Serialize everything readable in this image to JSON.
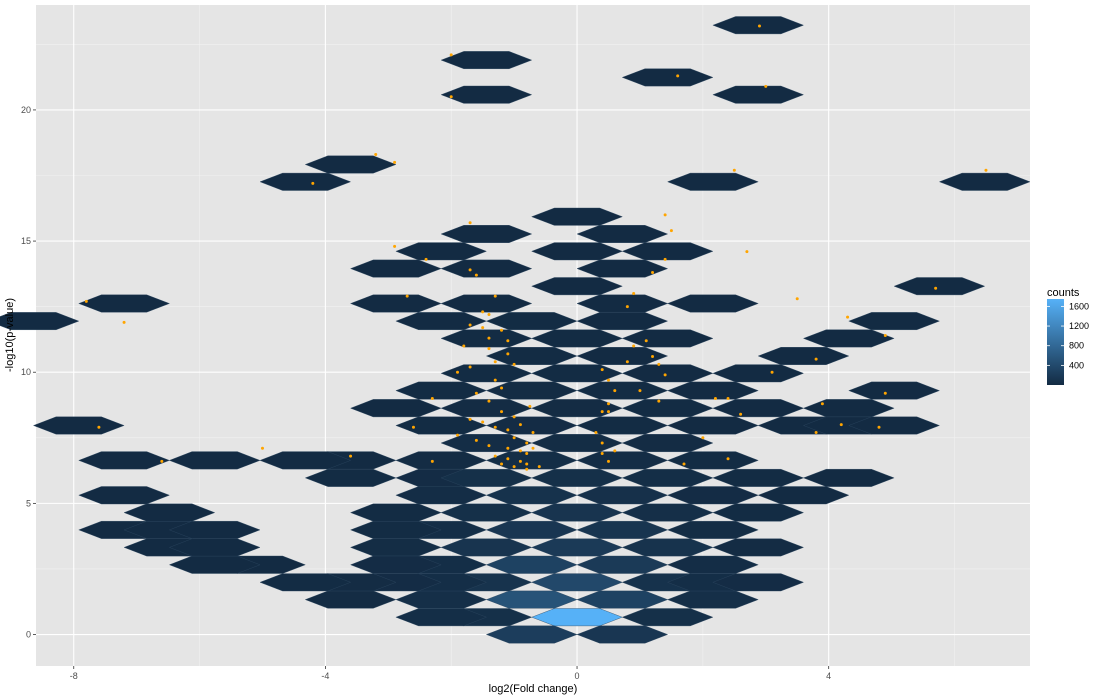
{
  "chart_data": {
    "type": "hexbin",
    "xlabel": "log2(Fold change)",
    "ylabel": "-log10(p-value)",
    "xlim": [
      -8.6,
      7.2
    ],
    "ylim": [
      -1.2,
      24.0
    ],
    "x_ticks": [
      -8,
      -4,
      0,
      4
    ],
    "y_ticks": [
      0,
      5,
      10,
      15,
      20
    ],
    "grid": true,
    "legend": {
      "title": "counts",
      "position": "right",
      "ticks": [
        400,
        800,
        1200,
        1600
      ],
      "range": [
        1,
        1750
      ]
    },
    "colors": {
      "low": "#132b43",
      "high": "#56b1f7",
      "points": "#ffa500",
      "panel": "#e5e5e5",
      "grid": "#ffffff"
    },
    "hex": {
      "dx": 0.72,
      "dy": 0.664
    },
    "bins": [
      [
        0,
        0.66,
        1750
      ],
      [
        -0.72,
        0.0,
        240
      ],
      [
        0.72,
        0.0,
        150
      ],
      [
        -0.72,
        1.33,
        520
      ],
      [
        0.72,
        1.33,
        300
      ],
      [
        -0.72,
        2.66,
        300
      ],
      [
        0.72,
        2.66,
        200
      ],
      [
        0.0,
        1.99,
        380
      ],
      [
        0.0,
        3.32,
        200
      ],
      [
        -1.44,
        0.66,
        60
      ],
      [
        1.44,
        0.66,
        60
      ],
      [
        -2.16,
        0.66,
        40
      ],
      [
        -1.44,
        1.99,
        100
      ],
      [
        1.44,
        1.99,
        90
      ],
      [
        -2.16,
        1.33,
        50
      ],
      [
        2.16,
        1.33,
        50
      ],
      [
        -2.16,
        1.99,
        40
      ],
      [
        2.16,
        1.99,
        40
      ],
      [
        2.88,
        1.99,
        20
      ],
      [
        -2.88,
        1.99,
        20
      ],
      [
        -3.6,
        1.33,
        15
      ],
      [
        -3.6,
        1.99,
        15
      ],
      [
        -4.32,
        1.99,
        10
      ],
      [
        -5.04,
        2.66,
        5
      ],
      [
        -5.76,
        2.66,
        5
      ],
      [
        -6.48,
        3.32,
        5
      ],
      [
        -7.2,
        3.99,
        5
      ],
      [
        -6.48,
        3.99,
        5
      ],
      [
        -5.76,
        3.32,
        5
      ],
      [
        -5.76,
        3.99,
        5
      ],
      [
        -6.48,
        4.65,
        5
      ],
      [
        -7.2,
        5.31,
        5
      ],
      [
        -2.88,
        3.32,
        25
      ],
      [
        -1.44,
        3.32,
        120
      ],
      [
        1.44,
        3.32,
        100
      ],
      [
        2.88,
        3.32,
        15
      ],
      [
        -2.16,
        2.66,
        40
      ],
      [
        2.16,
        2.66,
        30
      ],
      [
        -2.88,
        2.66,
        20
      ],
      [
        -2.16,
        3.99,
        40
      ],
      [
        -0.72,
        3.99,
        150
      ],
      [
        0.72,
        3.99,
        130
      ],
      [
        2.16,
        3.99,
        25
      ],
      [
        -2.88,
        3.99,
        10
      ],
      [
        -1.44,
        4.65,
        60
      ],
      [
        0.0,
        4.65,
        120
      ],
      [
        1.44,
        4.65,
        50
      ],
      [
        2.88,
        4.65,
        10
      ],
      [
        -2.88,
        4.65,
        10
      ],
      [
        -2.16,
        5.31,
        30
      ],
      [
        -0.72,
        5.31,
        90
      ],
      [
        0.72,
        5.31,
        70
      ],
      [
        2.16,
        5.31,
        20
      ],
      [
        3.6,
        5.31,
        5
      ],
      [
        -3.6,
        5.97,
        10
      ],
      [
        -2.16,
        5.97,
        20
      ],
      [
        -1.44,
        5.97,
        60
      ],
      [
        0.0,
        5.97,
        60
      ],
      [
        1.44,
        5.97,
        40
      ],
      [
        2.88,
        5.97,
        10
      ],
      [
        4.32,
        5.97,
        5
      ],
      [
        -3.6,
        6.64,
        5
      ],
      [
        -2.16,
        6.64,
        15
      ],
      [
        -0.72,
        6.64,
        40
      ],
      [
        0.72,
        6.64,
        30
      ],
      [
        2.16,
        6.64,
        10
      ],
      [
        -4.32,
        6.64,
        5
      ],
      [
        -5.76,
        6.64,
        5
      ],
      [
        -7.2,
        6.64,
        5
      ],
      [
        -1.44,
        7.3,
        30
      ],
      [
        0.0,
        7.3,
        25
      ],
      [
        1.44,
        7.3,
        15
      ],
      [
        -2.16,
        7.97,
        10
      ],
      [
        -0.72,
        7.97,
        20
      ],
      [
        0.72,
        7.97,
        10
      ],
      [
        2.16,
        7.97,
        5
      ],
      [
        3.6,
        7.97,
        5
      ],
      [
        4.32,
        7.97,
        5
      ],
      [
        5.04,
        7.97,
        5
      ],
      [
        -7.92,
        7.97,
        5
      ],
      [
        -2.88,
        8.63,
        5
      ],
      [
        -1.44,
        8.63,
        15
      ],
      [
        0.0,
        8.63,
        15
      ],
      [
        1.44,
        8.63,
        10
      ],
      [
        2.88,
        8.63,
        5
      ],
      [
        4.32,
        8.63,
        5
      ],
      [
        -2.16,
        9.3,
        10
      ],
      [
        -0.72,
        9.3,
        15
      ],
      [
        0.72,
        9.3,
        10
      ],
      [
        2.16,
        9.3,
        5
      ],
      [
        5.04,
        9.3,
        5
      ],
      [
        -1.44,
        9.96,
        10
      ],
      [
        0.0,
        9.96,
        10
      ],
      [
        1.44,
        9.96,
        5
      ],
      [
        2.88,
        9.96,
        5
      ],
      [
        -0.72,
        10.62,
        10
      ],
      [
        0.72,
        10.62,
        5
      ],
      [
        3.6,
        10.62,
        5
      ],
      [
        -1.44,
        11.29,
        10
      ],
      [
        0.0,
        11.29,
        10
      ],
      [
        1.44,
        11.29,
        5
      ],
      [
        4.32,
        11.29,
        5
      ],
      [
        -0.72,
        11.95,
        10
      ],
      [
        0.72,
        11.95,
        5
      ],
      [
        -2.16,
        11.95,
        5
      ],
      [
        5.04,
        11.95,
        5
      ],
      [
        -8.64,
        11.95,
        5
      ],
      [
        -1.44,
        12.62,
        5
      ],
      [
        0.72,
        12.62,
        5
      ],
      [
        -2.88,
        12.62,
        5
      ],
      [
        -7.2,
        12.62,
        5
      ],
      [
        2.16,
        12.62,
        5
      ],
      [
        0.0,
        13.28,
        5
      ],
      [
        5.76,
        13.28,
        5
      ],
      [
        -1.44,
        13.95,
        5
      ],
      [
        -2.88,
        13.95,
        5
      ],
      [
        0.72,
        13.95,
        5
      ],
      [
        -2.16,
        14.61,
        5
      ],
      [
        0.0,
        14.61,
        5
      ],
      [
        1.44,
        14.61,
        5
      ],
      [
        -1.44,
        15.27,
        5
      ],
      [
        0.72,
        15.27,
        5
      ],
      [
        0.0,
        15.93,
        5
      ],
      [
        -4.32,
        17.26,
        5
      ],
      [
        -3.6,
        17.92,
        5
      ],
      [
        2.16,
        17.26,
        5
      ],
      [
        6.48,
        17.26,
        5
      ],
      [
        -1.44,
        20.58,
        5
      ],
      [
        2.88,
        20.58,
        5
      ],
      [
        1.44,
        21.24,
        5
      ],
      [
        -1.44,
        21.9,
        5
      ],
      [
        2.88,
        23.23,
        5
      ]
    ],
    "points": [
      [
        -7.8,
        12.7
      ],
      [
        -7.2,
        11.9
      ],
      [
        -7.6,
        7.9
      ],
      [
        -6.6,
        6.6
      ],
      [
        -5.0,
        7.1
      ],
      [
        -3.6,
        6.8
      ],
      [
        -4.2,
        17.2
      ],
      [
        -3.2,
        18.3
      ],
      [
        -2.9,
        18.0
      ],
      [
        -2.9,
        14.8
      ],
      [
        -2.4,
        14.3
      ],
      [
        -2.7,
        12.9
      ],
      [
        -2.3,
        9.0
      ],
      [
        -2.6,
        7.9
      ],
      [
        -2.3,
        6.6
      ],
      [
        -2.0,
        22.1
      ],
      [
        -2.0,
        20.5
      ],
      [
        -1.7,
        15.7
      ],
      [
        -1.7,
        13.9
      ],
      [
        -1.6,
        13.7
      ],
      [
        -1.3,
        12.9
      ],
      [
        -1.7,
        11.8
      ],
      [
        -1.5,
        11.7
      ],
      [
        -1.4,
        12.2
      ],
      [
        -1.4,
        11.3
      ],
      [
        -1.8,
        11.0
      ],
      [
        -1.4,
        10.9
      ],
      [
        -1.3,
        10.4
      ],
      [
        -1.9,
        10.0
      ],
      [
        -1.7,
        10.2
      ],
      [
        -1.3,
        9.7
      ],
      [
        -1.2,
        9.4
      ],
      [
        -1.6,
        9.2
      ],
      [
        -1.4,
        8.9
      ],
      [
        -1.2,
        8.5
      ],
      [
        -1.7,
        8.2
      ],
      [
        -1.5,
        8.1
      ],
      [
        -1.3,
        7.9
      ],
      [
        -1.1,
        7.8
      ],
      [
        -1.9,
        7.6
      ],
      [
        -1.6,
        7.4
      ],
      [
        -1.4,
        7.2
      ],
      [
        -1.1,
        7.1
      ],
      [
        -0.9,
        7.0
      ],
      [
        -1.3,
        6.8
      ],
      [
        -1.1,
        6.7
      ],
      [
        -0.9,
        6.6
      ],
      [
        -1.2,
        6.5
      ],
      [
        -1.0,
        6.4
      ],
      [
        -0.8,
        6.3
      ],
      [
        -1.0,
        7.5
      ],
      [
        -0.8,
        7.3
      ],
      [
        -1.0,
        8.3
      ],
      [
        -0.9,
        8.0
      ],
      [
        -1.2,
        11.6
      ],
      [
        -1.1,
        10.7
      ],
      [
        -1.0,
        10.3
      ],
      [
        -1.5,
        12.3
      ],
      [
        -1.1,
        11.2
      ],
      [
        -0.7,
        7.7
      ],
      [
        -0.8,
        6.9
      ],
      [
        -0.8,
        6.5
      ],
      [
        -0.75,
        8.7
      ],
      [
        -0.7,
        7.1
      ],
      [
        -0.6,
        6.4
      ],
      [
        0.3,
        7.7
      ],
      [
        0.4,
        7.3
      ],
      [
        0.4,
        6.9
      ],
      [
        0.5,
        6.6
      ],
      [
        0.6,
        7.0
      ],
      [
        0.4,
        8.5
      ],
      [
        0.5,
        8.8
      ],
      [
        0.5,
        8.5
      ],
      [
        0.6,
        9.3
      ],
      [
        0.4,
        10.1
      ],
      [
        0.5,
        9.7
      ],
      [
        0.8,
        10.4
      ],
      [
        0.9,
        11.0
      ],
      [
        1.1,
        11.2
      ],
      [
        1.2,
        10.6
      ],
      [
        1.3,
        10.3
      ],
      [
        1.4,
        9.9
      ],
      [
        1.0,
        9.3
      ],
      [
        1.3,
        8.9
      ],
      [
        0.8,
        12.5
      ],
      [
        0.9,
        13.0
      ],
      [
        1.2,
        13.8
      ],
      [
        1.4,
        14.3
      ],
      [
        1.5,
        15.4
      ],
      [
        1.4,
        16.0
      ],
      [
        2.7,
        14.6
      ],
      [
        2.2,
        9.0
      ],
      [
        2.4,
        9.0
      ],
      [
        2.6,
        8.4
      ],
      [
        2.0,
        7.5
      ],
      [
        2.4,
        6.7
      ],
      [
        1.6,
        21.3
      ],
      [
        3.0,
        20.9
      ],
      [
        2.9,
        23.2
      ],
      [
        2.5,
        17.7
      ],
      [
        3.5,
        12.8
      ],
      [
        3.8,
        10.5
      ],
      [
        3.9,
        8.8
      ],
      [
        4.2,
        8.0
      ],
      [
        3.8,
        7.7
      ],
      [
        4.3,
        12.1
      ],
      [
        4.9,
        11.4
      ],
      [
        4.9,
        9.2
      ],
      [
        4.8,
        7.9
      ],
      [
        5.7,
        13.2
      ],
      [
        6.5,
        17.7
      ],
      [
        3.1,
        10.0
      ],
      [
        1.7,
        6.5
      ]
    ]
  }
}
